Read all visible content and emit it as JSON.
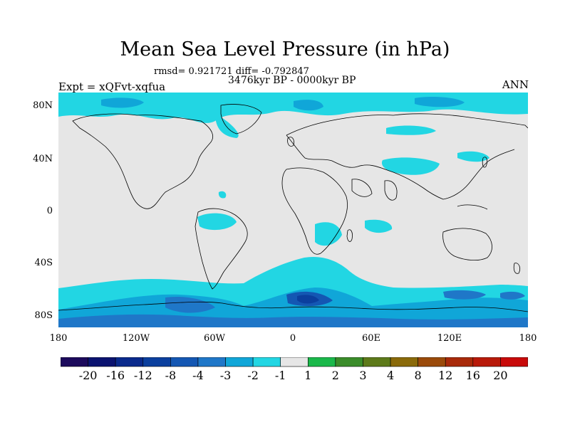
{
  "title": "Mean Sea Level Pressure (in hPa)",
  "stats_text": "rmsd= 0.921721 diff= -0.792847",
  "period": "3476kyr BP - 0000kyr BP",
  "experiment": "Expt = xQFvt-xqfua",
  "season": "ANN",
  "lat_labels": [
    "80N",
    "40N",
    "0",
    "40S",
    "80S"
  ],
  "lon_labels": [
    "180",
    "120W",
    "60W",
    "0",
    "60E",
    "120E",
    "180"
  ],
  "colorbar": {
    "labels": [
      "-20",
      "-16",
      "-12",
      "-8",
      "-4",
      "-3",
      "-2",
      "-1",
      "1",
      "2",
      "3",
      "4",
      "8",
      "12",
      "16",
      "20"
    ],
    "colors": [
      "#1c0a5c",
      "#0b1370",
      "#0a2a8c",
      "#0b3f9e",
      "#1457b3",
      "#1f77c8",
      "#10a6d8",
      "#22d6e3",
      "#e6e6e6",
      "#1ab84a",
      "#3a8c2a",
      "#5d7a1a",
      "#8a6a0a",
      "#9a4a0a",
      "#a82a0a",
      "#b81a0a",
      "#c80a0a"
    ]
  },
  "colors": {
    "background_field": "#e6e6e6",
    "anomaly_neg1": "#22d6e3",
    "anomaly_neg2": "#10a6d8",
    "anomaly_neg3": "#1f77c8",
    "anomaly_neg4": "#1457b3",
    "anomaly_neg8": "#0b3f9e",
    "coastline": "#000000"
  }
}
